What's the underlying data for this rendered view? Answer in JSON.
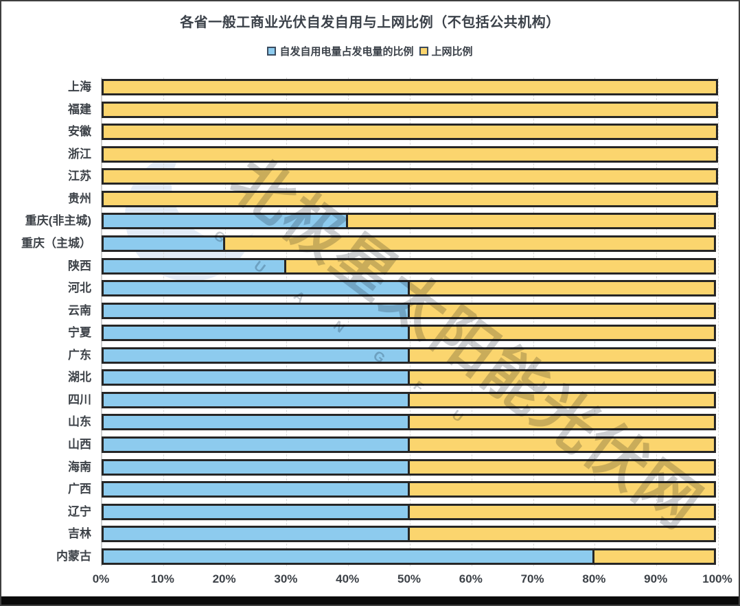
{
  "title": "各省一般工商业光伏自发自用与上网比例（不包括公共机构）",
  "legend": [
    {
      "label": "自发自用电量占发电量的比例",
      "color": "#8DCBEE"
    },
    {
      "label": "上网比例",
      "color": "#FBD56E"
    }
  ],
  "watermark": {
    "main": "北极星太阳能光伏网",
    "sub": "GUANGFU",
    "star": "✦"
  },
  "colors": {
    "self_use_fill": "#8DCBEE",
    "grid_feed_fill": "#FBD56E",
    "bar_border": "#262626",
    "gridline": "#d9d9d9",
    "text": "#3d4248",
    "bottom_bar": "#0a0a0a"
  },
  "chart_data": {
    "type": "bar",
    "orientation": "horizontal",
    "stacked": true,
    "title": "各省一般工商业光伏自发自用与上网比例（不包括公共机构）",
    "categories": [
      "上海",
      "福建",
      "安徽",
      "浙江",
      "江苏",
      "贵州",
      "重庆(非主城)",
      "重庆（主城）",
      "陕西",
      "河北",
      "云南",
      "宁夏",
      "广东",
      "湖北",
      "四川",
      "山东",
      "山西",
      "海南",
      "广西",
      "辽宁",
      "吉林",
      "内蒙古"
    ],
    "series": [
      {
        "name": "自发自用电量占发电量的比例",
        "color": "#8DCBEE",
        "values": [
          0,
          0,
          0,
          0,
          0,
          0,
          40,
          20,
          30,
          50,
          50,
          50,
          50,
          50,
          50,
          50,
          50,
          50,
          50,
          50,
          50,
          80
        ]
      },
      {
        "name": "上网比例",
        "color": "#FBD56E",
        "values": [
          100,
          100,
          100,
          100,
          100,
          100,
          60,
          80,
          70,
          50,
          50,
          50,
          50,
          50,
          50,
          50,
          50,
          50,
          50,
          50,
          50,
          20
        ]
      }
    ],
    "x_ticks": [
      "0%",
      "10%",
      "20%",
      "30%",
      "40%",
      "50%",
      "60%",
      "70%",
      "80%",
      "90%",
      "100%"
    ],
    "xlim": [
      0,
      100
    ],
    "grid": "vertical-dashed",
    "legend_position": "top"
  }
}
